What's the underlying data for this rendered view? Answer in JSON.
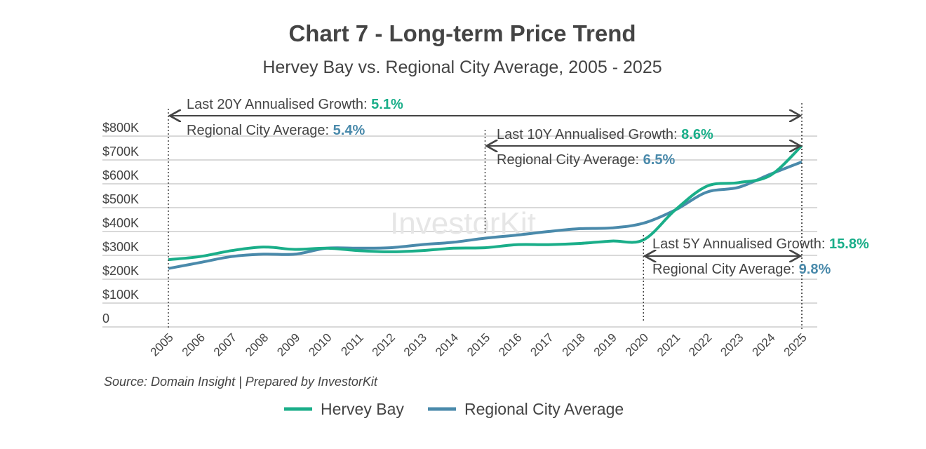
{
  "chart_data": {
    "type": "line",
    "title": "Chart 7 - Long-term Price Trend",
    "subtitle": "Hervey Bay vs. Regional City Average, 2005 - 2025",
    "x": [
      2005,
      2006,
      2007,
      2008,
      2009,
      2010,
      2011,
      2012,
      2013,
      2014,
      2015,
      2016,
      2017,
      2018,
      2019,
      2020,
      2021,
      2022,
      2023,
      2024,
      2025
    ],
    "y_ticks": [
      "0",
      "$100K",
      "$200K",
      "$300K",
      "$400K",
      "$500K",
      "$600K",
      "$700K",
      "$800K"
    ],
    "ylim": [
      0,
      800000
    ],
    "grid": true,
    "legend_position": "bottom",
    "series": [
      {
        "name": "Hervey Bay",
        "color": "#1aae89",
        "values": [
          282000,
          295000,
          320000,
          335000,
          325000,
          330000,
          320000,
          315000,
          320000,
          330000,
          332000,
          345000,
          345000,
          350000,
          360000,
          365000,
          490000,
          590000,
          605000,
          635000,
          760000
        ]
      },
      {
        "name": "Regional City Average",
        "color": "#4a8aab",
        "values": [
          245000,
          270000,
          295000,
          305000,
          305000,
          330000,
          330000,
          332000,
          345000,
          355000,
          372000,
          385000,
          400000,
          412000,
          415000,
          435000,
          490000,
          565000,
          585000,
          640000,
          692000
        ]
      }
    ],
    "annotations": [
      {
        "from": 2005,
        "to": 2025,
        "label": "Last 20Y Annualised Growth: ",
        "value": "5.1%",
        "avg_label": "Regional City Average: ",
        "avg_value": "5.4%"
      },
      {
        "from": 2015,
        "to": 2025,
        "label": "Last 10Y Annualised Growth: ",
        "value": "8.6%",
        "avg_label": "Regional City Average: ",
        "avg_value": "6.5%"
      },
      {
        "from": 2020,
        "to": 2025,
        "label": "Last 5Y Annualised Growth: ",
        "value": "15.8%",
        "avg_label": "Regional City Average: ",
        "avg_value": "9.8%"
      }
    ],
    "source": "Source: Domain Insight | Prepared by InvestorKit",
    "watermark": "InvestorKit"
  }
}
